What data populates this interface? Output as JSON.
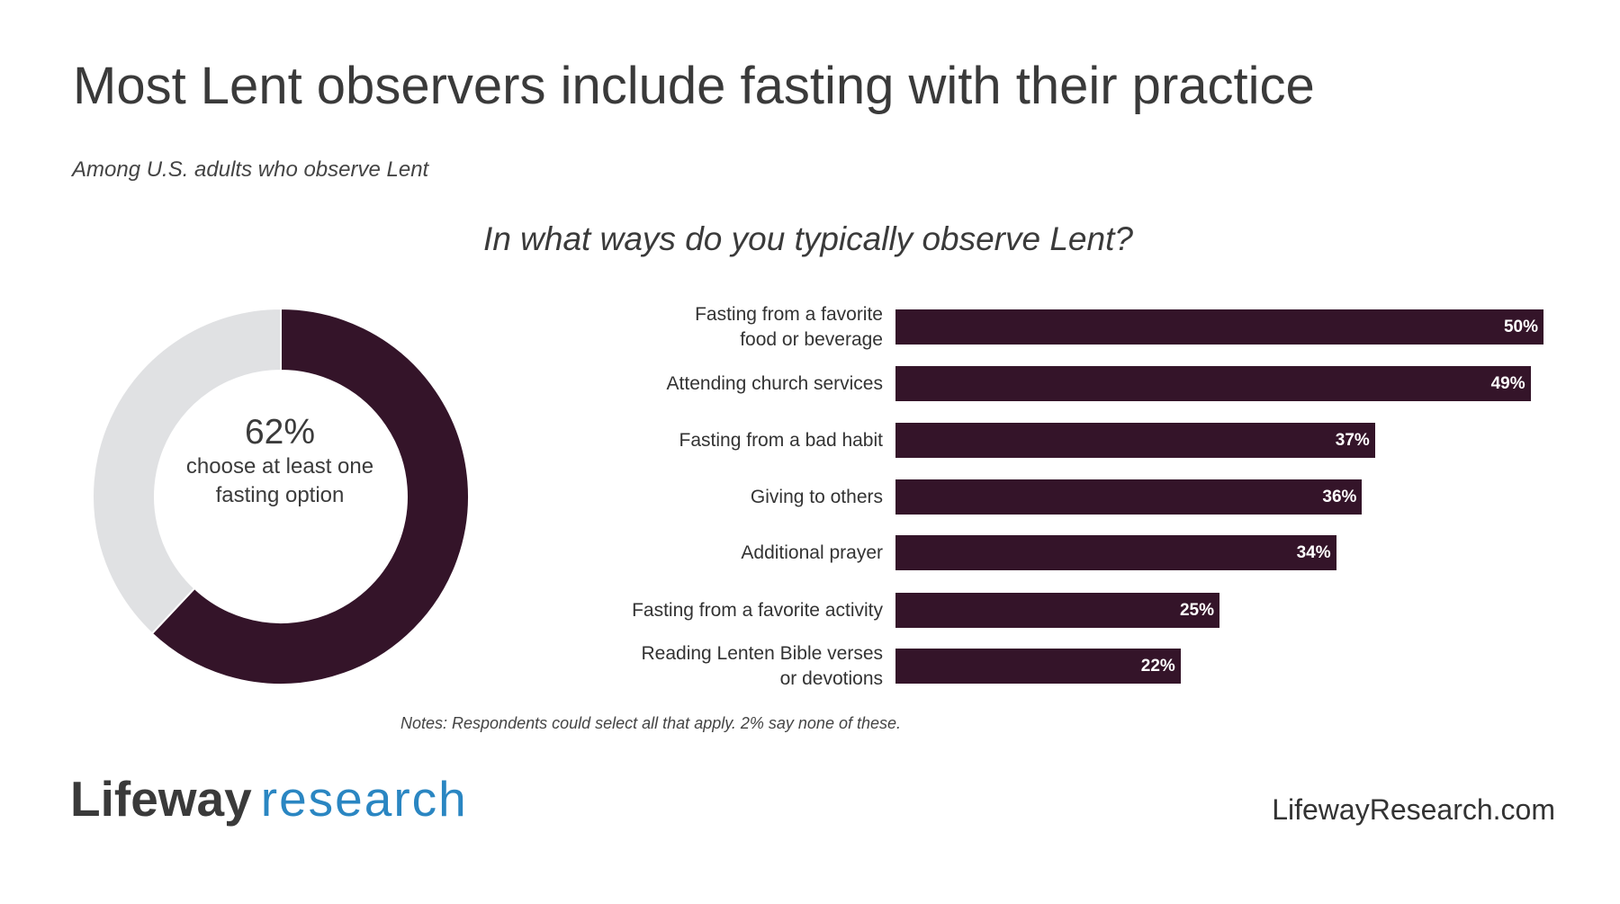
{
  "title": "Most Lent observers include fasting with their practice",
  "subtitle": "Among U.S. adults who observe Lent",
  "colors": {
    "bar": "#341429",
    "donut_rest": "#e0e1e3",
    "logo_blue": "#2a86c2"
  },
  "chart_data": [
    {
      "type": "pie",
      "subtype": "donut",
      "values": [
        62,
        38
      ],
      "center_value": "62%",
      "center_caption": "choose at least one fasting option"
    },
    {
      "type": "bar",
      "orientation": "horizontal",
      "title": "In what ways do you typically observe Lent?",
      "categories": [
        "Fasting from a favorite food or beverage",
        "Attending church services",
        "Fasting from a bad habit",
        "Giving to others",
        "Additional prayer",
        "Fasting from a favorite activity",
        "Reading Lenten Bible verses or devotions"
      ],
      "category_lines": [
        [
          "Fasting from a favorite",
          "food or beverage"
        ],
        [
          "Attending church services"
        ],
        [
          "Fasting from a bad habit"
        ],
        [
          "Giving to others"
        ],
        [
          "Additional prayer"
        ],
        [
          "Fasting from a favorite activity"
        ],
        [
          "Reading Lenten Bible verses",
          "or devotions"
        ]
      ],
      "values": [
        50,
        49,
        37,
        36,
        34,
        25,
        22
      ],
      "data_labels": [
        "50%",
        "49%",
        "37%",
        "36%",
        "34%",
        "25%",
        "22%"
      ],
      "xlim": [
        0,
        50
      ],
      "grid": false
    }
  ],
  "notes": "Notes: Respondents could select all that apply. 2% say none of these.",
  "footer": {
    "logo_part1": "Lifeway",
    "logo_part2": "research",
    "url": "LifewayResearch.com"
  }
}
